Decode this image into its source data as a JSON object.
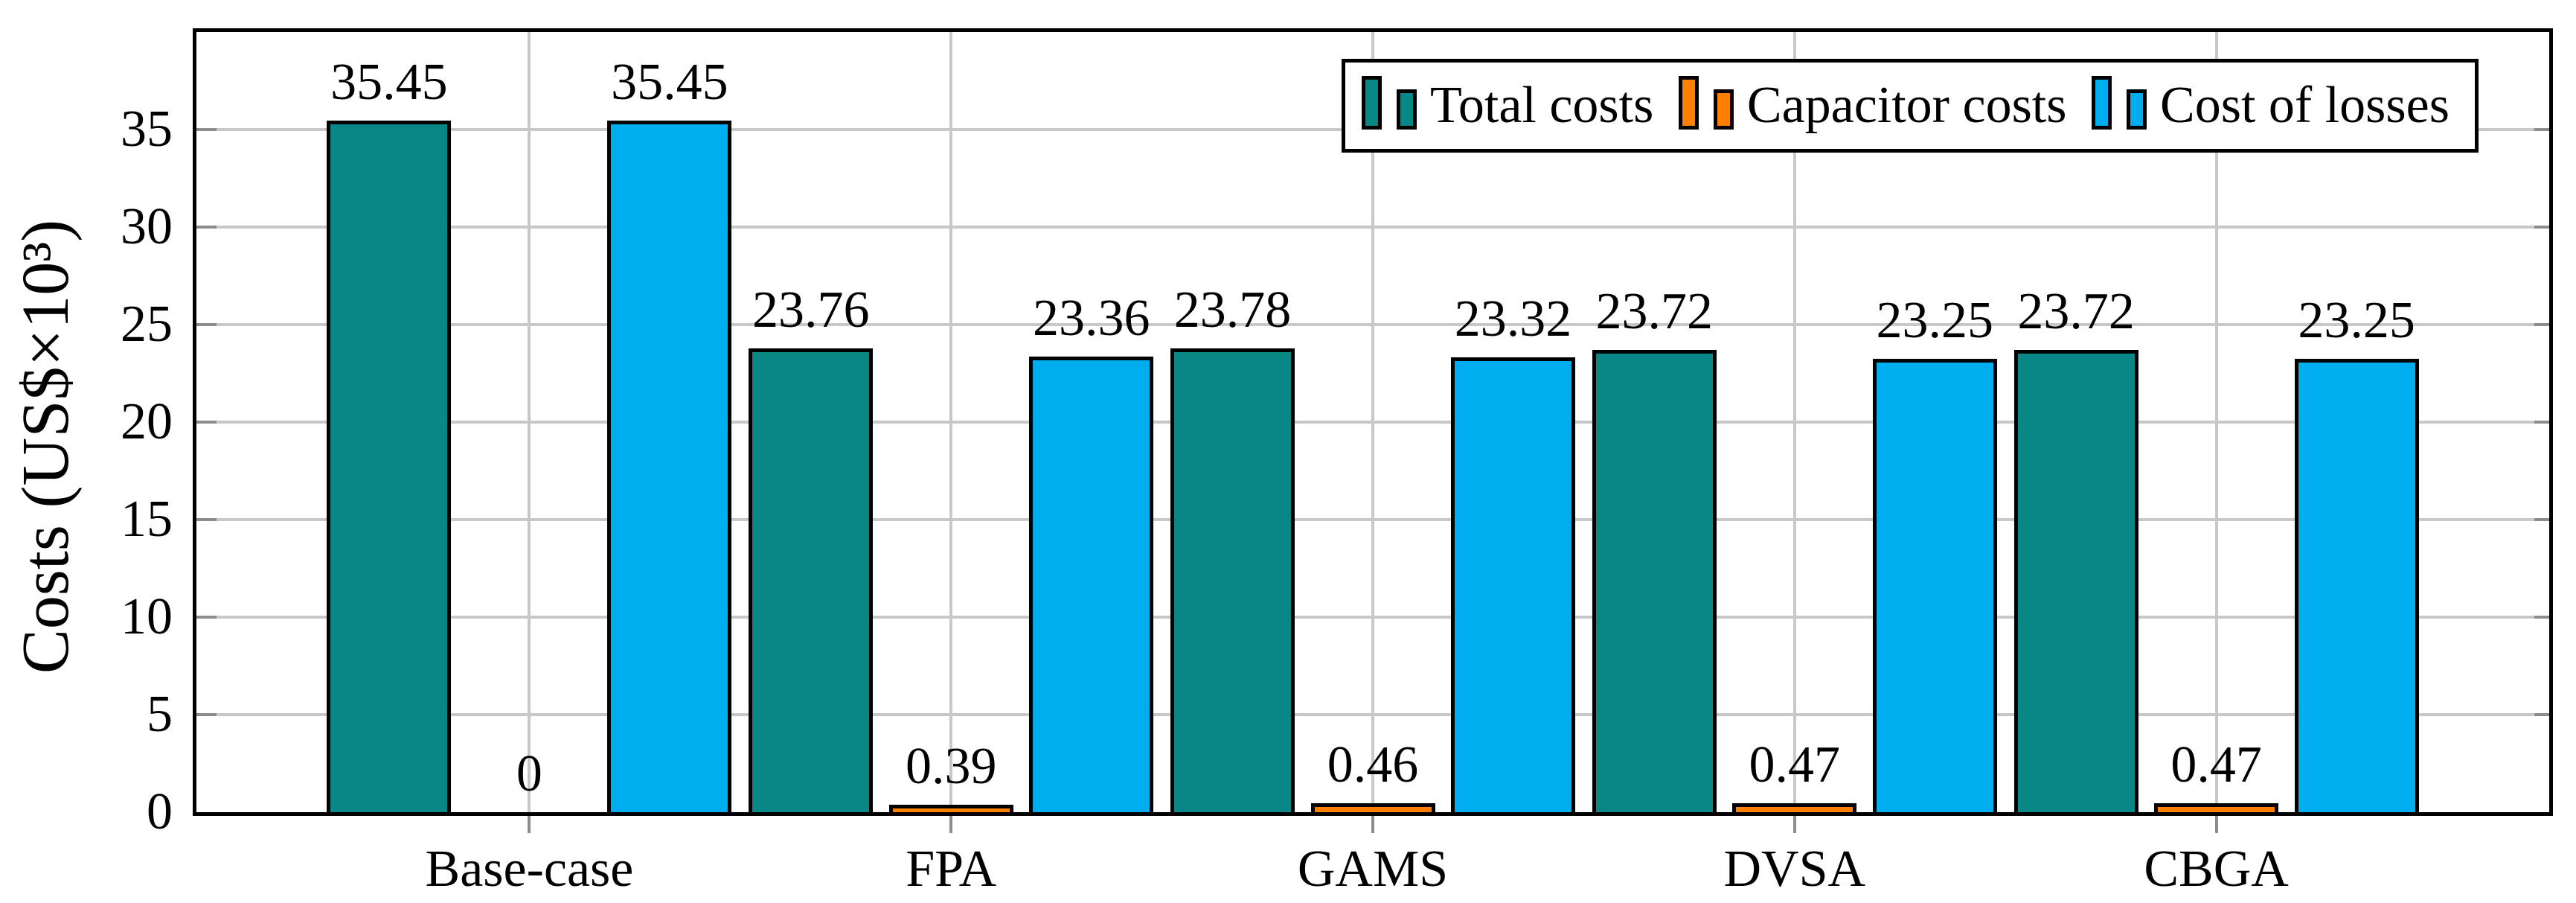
{
  "figure": {
    "background": "#ffffff"
  },
  "chart_data": {
    "type": "bar",
    "title": "",
    "xlabel": "",
    "ylabel": "Costs (US$×10³)",
    "categories": [
      "Base-case",
      "FPA",
      "GAMS",
      "DVSA",
      "CBGA"
    ],
    "series": [
      {
        "name": "Total costs",
        "color": "#088786",
        "values": [
          35.45,
          23.76,
          23.78,
          23.72,
          23.72
        ],
        "display_labels": [
          "35.45",
          "23.76",
          "23.78",
          "23.72",
          "23.72"
        ]
      },
      {
        "name": "Capacitor costs",
        "color": "#ff8000",
        "values": [
          0,
          0.39,
          0.46,
          0.47,
          0.47
        ],
        "display_labels": [
          "0",
          "0.39",
          "0.46",
          "0.47",
          "0.47"
        ]
      },
      {
        "name": "Cost of losses",
        "color": "#00aeef",
        "values": [
          35.45,
          23.36,
          23.32,
          23.25,
          23.25
        ],
        "display_labels": [
          "35.45",
          "23.36",
          "23.32",
          "23.25",
          "23.25"
        ]
      }
    ],
    "yticks": [
      0,
      5,
      10,
      15,
      20,
      25,
      30,
      35
    ],
    "ytick_labels": [
      "0",
      "5",
      "10",
      "15",
      "20",
      "25",
      "30",
      "35"
    ],
    "ylim": [
      0,
      40
    ],
    "grid": true,
    "legend_position": "top-right",
    "colors": {
      "grid": "#c8c8c8",
      "tick": "#8c8c8c",
      "axis": "#000000",
      "bar_border": "#000000",
      "text": "#000000"
    }
  }
}
